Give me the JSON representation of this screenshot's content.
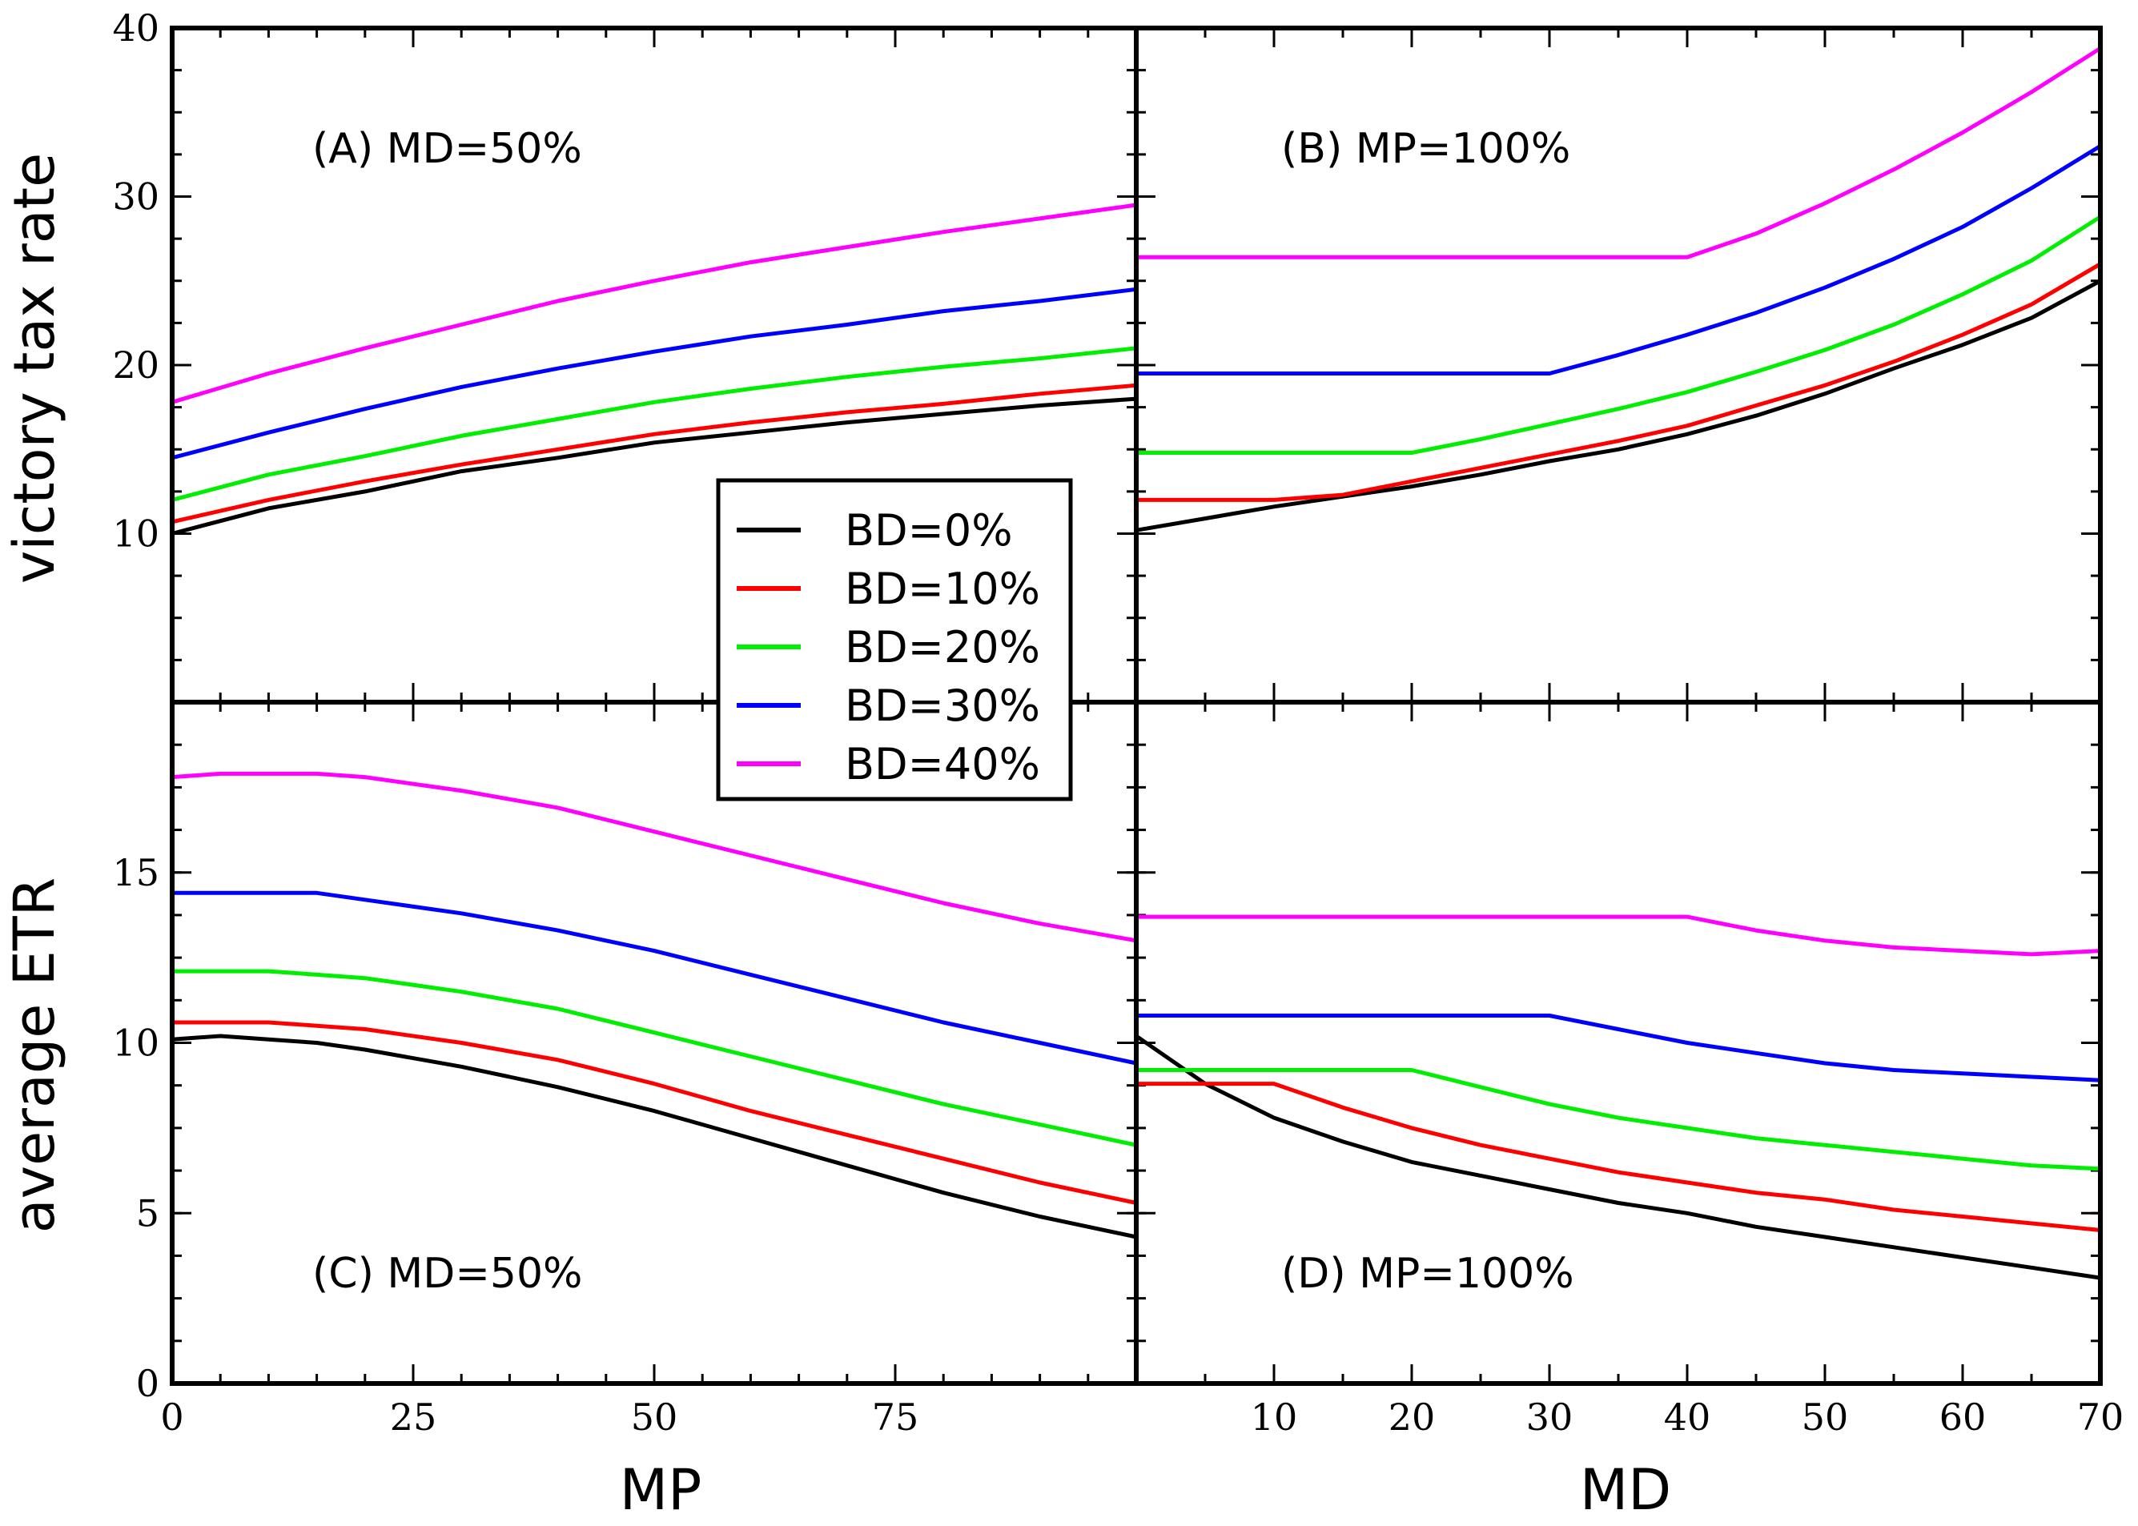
{
  "chart_data": [
    {
      "panel": "A",
      "type": "line",
      "label": "(A) MD=50%",
      "xlabel": "MP",
      "ylabel": "victory tax rate",
      "xlim": [
        0,
        100
      ],
      "ylim": [
        0,
        40
      ],
      "xticks": [],
      "yticks": [
        10,
        20,
        30,
        40
      ],
      "series": [
        {
          "name": "BD=0%",
          "color": "#000000",
          "x": [
            0,
            10,
            20,
            30,
            40,
            50,
            60,
            70,
            80,
            90,
            100
          ],
          "y": [
            10.0,
            11.5,
            12.5,
            13.7,
            14.5,
            15.4,
            16.0,
            16.6,
            17.1,
            17.6,
            18.0
          ]
        },
        {
          "name": "BD=10%",
          "color": "#ff0000",
          "x": [
            0,
            10,
            20,
            30,
            40,
            50,
            60,
            70,
            80,
            90,
            100
          ],
          "y": [
            10.7,
            12.0,
            13.1,
            14.1,
            15.0,
            15.9,
            16.6,
            17.2,
            17.7,
            18.3,
            18.8
          ]
        },
        {
          "name": "BD=20%",
          "color": "#00ee00",
          "x": [
            0,
            10,
            20,
            30,
            40,
            50,
            60,
            70,
            80,
            90,
            100
          ],
          "y": [
            12.0,
            13.5,
            14.6,
            15.8,
            16.8,
            17.8,
            18.6,
            19.3,
            19.9,
            20.4,
            21.0
          ]
        },
        {
          "name": "BD=30%",
          "color": "#0000ff",
          "x": [
            0,
            10,
            20,
            30,
            40,
            50,
            60,
            70,
            80,
            90,
            100
          ],
          "y": [
            14.5,
            16.0,
            17.4,
            18.7,
            19.8,
            20.8,
            21.7,
            22.4,
            23.2,
            23.8,
            24.5
          ]
        },
        {
          "name": "BD=40%",
          "color": "#ff00ff",
          "x": [
            0,
            10,
            20,
            30,
            40,
            50,
            60,
            70,
            80,
            90,
            100
          ],
          "y": [
            17.8,
            19.5,
            21.0,
            22.4,
            23.8,
            25.0,
            26.1,
            27.0,
            27.9,
            28.7,
            29.5
          ]
        }
      ]
    },
    {
      "panel": "B",
      "type": "line",
      "label": "(B) MP=100%",
      "xlabel": "MD",
      "ylabel": "victory tax rate",
      "xlim": [
        0,
        70
      ],
      "ylim": [
        0,
        40
      ],
      "xticks": [],
      "yticks": [],
      "series": [
        {
          "name": "BD=0%",
          "color": "#000000",
          "x": [
            0,
            5,
            10,
            15,
            20,
            25,
            30,
            35,
            40,
            45,
            50,
            55,
            60,
            65,
            70
          ],
          "y": [
            10.2,
            10.9,
            11.6,
            12.2,
            12.8,
            13.5,
            14.3,
            15.0,
            15.9,
            17.0,
            18.3,
            19.8,
            21.2,
            22.8,
            25.0
          ]
        },
        {
          "name": "BD=10%",
          "color": "#ff0000",
          "x": [
            0,
            5,
            10,
            15,
            20,
            25,
            30,
            35,
            40,
            45,
            50,
            55,
            60,
            65,
            70
          ],
          "y": [
            12.0,
            12.0,
            12.0,
            12.3,
            13.1,
            13.9,
            14.7,
            15.5,
            16.4,
            17.6,
            18.8,
            20.2,
            21.8,
            23.6,
            26.0
          ]
        },
        {
          "name": "BD=20%",
          "color": "#00ee00",
          "x": [
            0,
            5,
            10,
            15,
            20,
            25,
            30,
            35,
            40,
            45,
            50,
            55,
            60,
            65,
            70
          ],
          "y": [
            14.8,
            14.8,
            14.8,
            14.8,
            14.8,
            15.6,
            16.5,
            17.4,
            18.4,
            19.6,
            20.9,
            22.4,
            24.2,
            26.2,
            28.8
          ]
        },
        {
          "name": "BD=30%",
          "color": "#0000ff",
          "x": [
            0,
            5,
            10,
            15,
            20,
            25,
            30,
            35,
            40,
            45,
            50,
            55,
            60,
            65,
            70
          ],
          "y": [
            19.5,
            19.5,
            19.5,
            19.5,
            19.5,
            19.5,
            19.5,
            20.6,
            21.8,
            23.1,
            24.6,
            26.3,
            28.2,
            30.5,
            33.0
          ]
        },
        {
          "name": "BD=40%",
          "color": "#ff00ff",
          "x": [
            0,
            5,
            10,
            15,
            20,
            25,
            30,
            35,
            40,
            45,
            50,
            55,
            60,
            65,
            70
          ],
          "y": [
            26.4,
            26.4,
            26.4,
            26.4,
            26.4,
            26.4,
            26.4,
            26.4,
            26.4,
            27.8,
            29.6,
            31.6,
            33.8,
            36.2,
            38.8
          ]
        }
      ]
    },
    {
      "panel": "C",
      "type": "line",
      "label": "(C) MD=50%",
      "xlabel": "MP",
      "ylabel": "average ETR",
      "xlim": [
        0,
        100
      ],
      "ylim": [
        0,
        20
      ],
      "xticks": [
        0,
        25,
        50,
        75
      ],
      "yticks": [
        0,
        5,
        10,
        15
      ],
      "series": [
        {
          "name": "BD=0%",
          "color": "#000000",
          "x": [
            0,
            5,
            10,
            15,
            20,
            30,
            40,
            50,
            60,
            70,
            80,
            90,
            100
          ],
          "y": [
            10.1,
            10.2,
            10.1,
            10.0,
            9.8,
            9.3,
            8.7,
            8.0,
            7.2,
            6.4,
            5.6,
            4.9,
            4.3
          ]
        },
        {
          "name": "BD=10%",
          "color": "#ff0000",
          "x": [
            0,
            5,
            10,
            15,
            20,
            30,
            40,
            50,
            60,
            70,
            80,
            90,
            100
          ],
          "y": [
            10.6,
            10.6,
            10.6,
            10.5,
            10.4,
            10.0,
            9.5,
            8.8,
            8.0,
            7.3,
            6.6,
            5.9,
            5.3
          ]
        },
        {
          "name": "BD=20%",
          "color": "#00ee00",
          "x": [
            0,
            5,
            10,
            15,
            20,
            30,
            40,
            50,
            60,
            70,
            80,
            90,
            100
          ],
          "y": [
            12.1,
            12.1,
            12.1,
            12.0,
            11.9,
            11.5,
            11.0,
            10.3,
            9.6,
            8.9,
            8.2,
            7.6,
            7.0
          ]
        },
        {
          "name": "BD=30%",
          "color": "#0000ff",
          "x": [
            0,
            5,
            10,
            15,
            20,
            30,
            40,
            50,
            60,
            70,
            80,
            90,
            100
          ],
          "y": [
            14.4,
            14.4,
            14.4,
            14.4,
            14.2,
            13.8,
            13.3,
            12.7,
            12.0,
            11.3,
            10.6,
            10.0,
            9.4
          ]
        },
        {
          "name": "BD=40%",
          "color": "#ff00ff",
          "x": [
            0,
            5,
            10,
            15,
            20,
            30,
            40,
            50,
            60,
            70,
            80,
            90,
            100
          ],
          "y": [
            17.8,
            17.9,
            17.9,
            17.9,
            17.8,
            17.4,
            16.9,
            16.2,
            15.5,
            14.8,
            14.1,
            13.5,
            13.0
          ]
        }
      ]
    },
    {
      "panel": "D",
      "type": "line",
      "label": "(D) MP=100%",
      "xlabel": "MD",
      "ylabel": "average ETR",
      "xlim": [
        0,
        70
      ],
      "ylim": [
        0,
        20
      ],
      "xticks": [
        10,
        20,
        30,
        40,
        50,
        60,
        70
      ],
      "yticks": [],
      "series": [
        {
          "name": "BD=0%",
          "color": "#000000",
          "x": [
            0,
            5,
            10,
            15,
            20,
            25,
            30,
            35,
            40,
            45,
            50,
            55,
            60,
            65,
            70
          ],
          "y": [
            10.2,
            8.8,
            7.8,
            7.1,
            6.5,
            6.1,
            5.7,
            5.3,
            5.0,
            4.6,
            4.3,
            4.0,
            3.7,
            3.4,
            3.1
          ]
        },
        {
          "name": "BD=10%",
          "color": "#ff0000",
          "x": [
            0,
            5,
            10,
            15,
            20,
            25,
            30,
            35,
            40,
            45,
            50,
            55,
            60,
            65,
            70
          ],
          "y": [
            8.8,
            8.8,
            8.8,
            8.1,
            7.5,
            7.0,
            6.6,
            6.2,
            5.9,
            5.6,
            5.4,
            5.1,
            4.9,
            4.7,
            4.5
          ]
        },
        {
          "name": "BD=20%",
          "color": "#00ee00",
          "x": [
            0,
            5,
            10,
            15,
            20,
            25,
            30,
            35,
            40,
            45,
            50,
            55,
            60,
            65,
            70
          ],
          "y": [
            9.2,
            9.2,
            9.2,
            9.2,
            9.2,
            8.7,
            8.2,
            7.8,
            7.5,
            7.2,
            7.0,
            6.8,
            6.6,
            6.4,
            6.3
          ]
        },
        {
          "name": "BD=30%",
          "color": "#0000ff",
          "x": [
            0,
            5,
            10,
            15,
            20,
            25,
            30,
            35,
            40,
            45,
            50,
            55,
            60,
            65,
            70
          ],
          "y": [
            10.8,
            10.8,
            10.8,
            10.8,
            10.8,
            10.8,
            10.8,
            10.4,
            10.0,
            9.7,
            9.4,
            9.2,
            9.1,
            9.0,
            8.9
          ]
        },
        {
          "name": "BD=40%",
          "color": "#ff00ff",
          "x": [
            0,
            5,
            10,
            15,
            20,
            25,
            30,
            35,
            40,
            45,
            50,
            55,
            60,
            65,
            70
          ],
          "y": [
            13.7,
            13.7,
            13.7,
            13.7,
            13.7,
            13.7,
            13.7,
            13.7,
            13.7,
            13.3,
            13.0,
            12.8,
            12.7,
            12.6,
            12.7
          ]
        }
      ]
    }
  ],
  "legend": {
    "placement": "center",
    "entries": [
      {
        "label": "BD=0%",
        "color": "#000000"
      },
      {
        "label": "BD=10%",
        "color": "#ff0000"
      },
      {
        "label": "BD=20%",
        "color": "#00ee00"
      },
      {
        "label": "BD=30%",
        "color": "#0000ff"
      },
      {
        "label": "BD=40%",
        "color": "#ff00ff"
      }
    ]
  },
  "axis_titles": {
    "top_y": "victory tax rate",
    "bottom_y": "average ETR",
    "left_x": "MP",
    "right_x": "MD"
  }
}
